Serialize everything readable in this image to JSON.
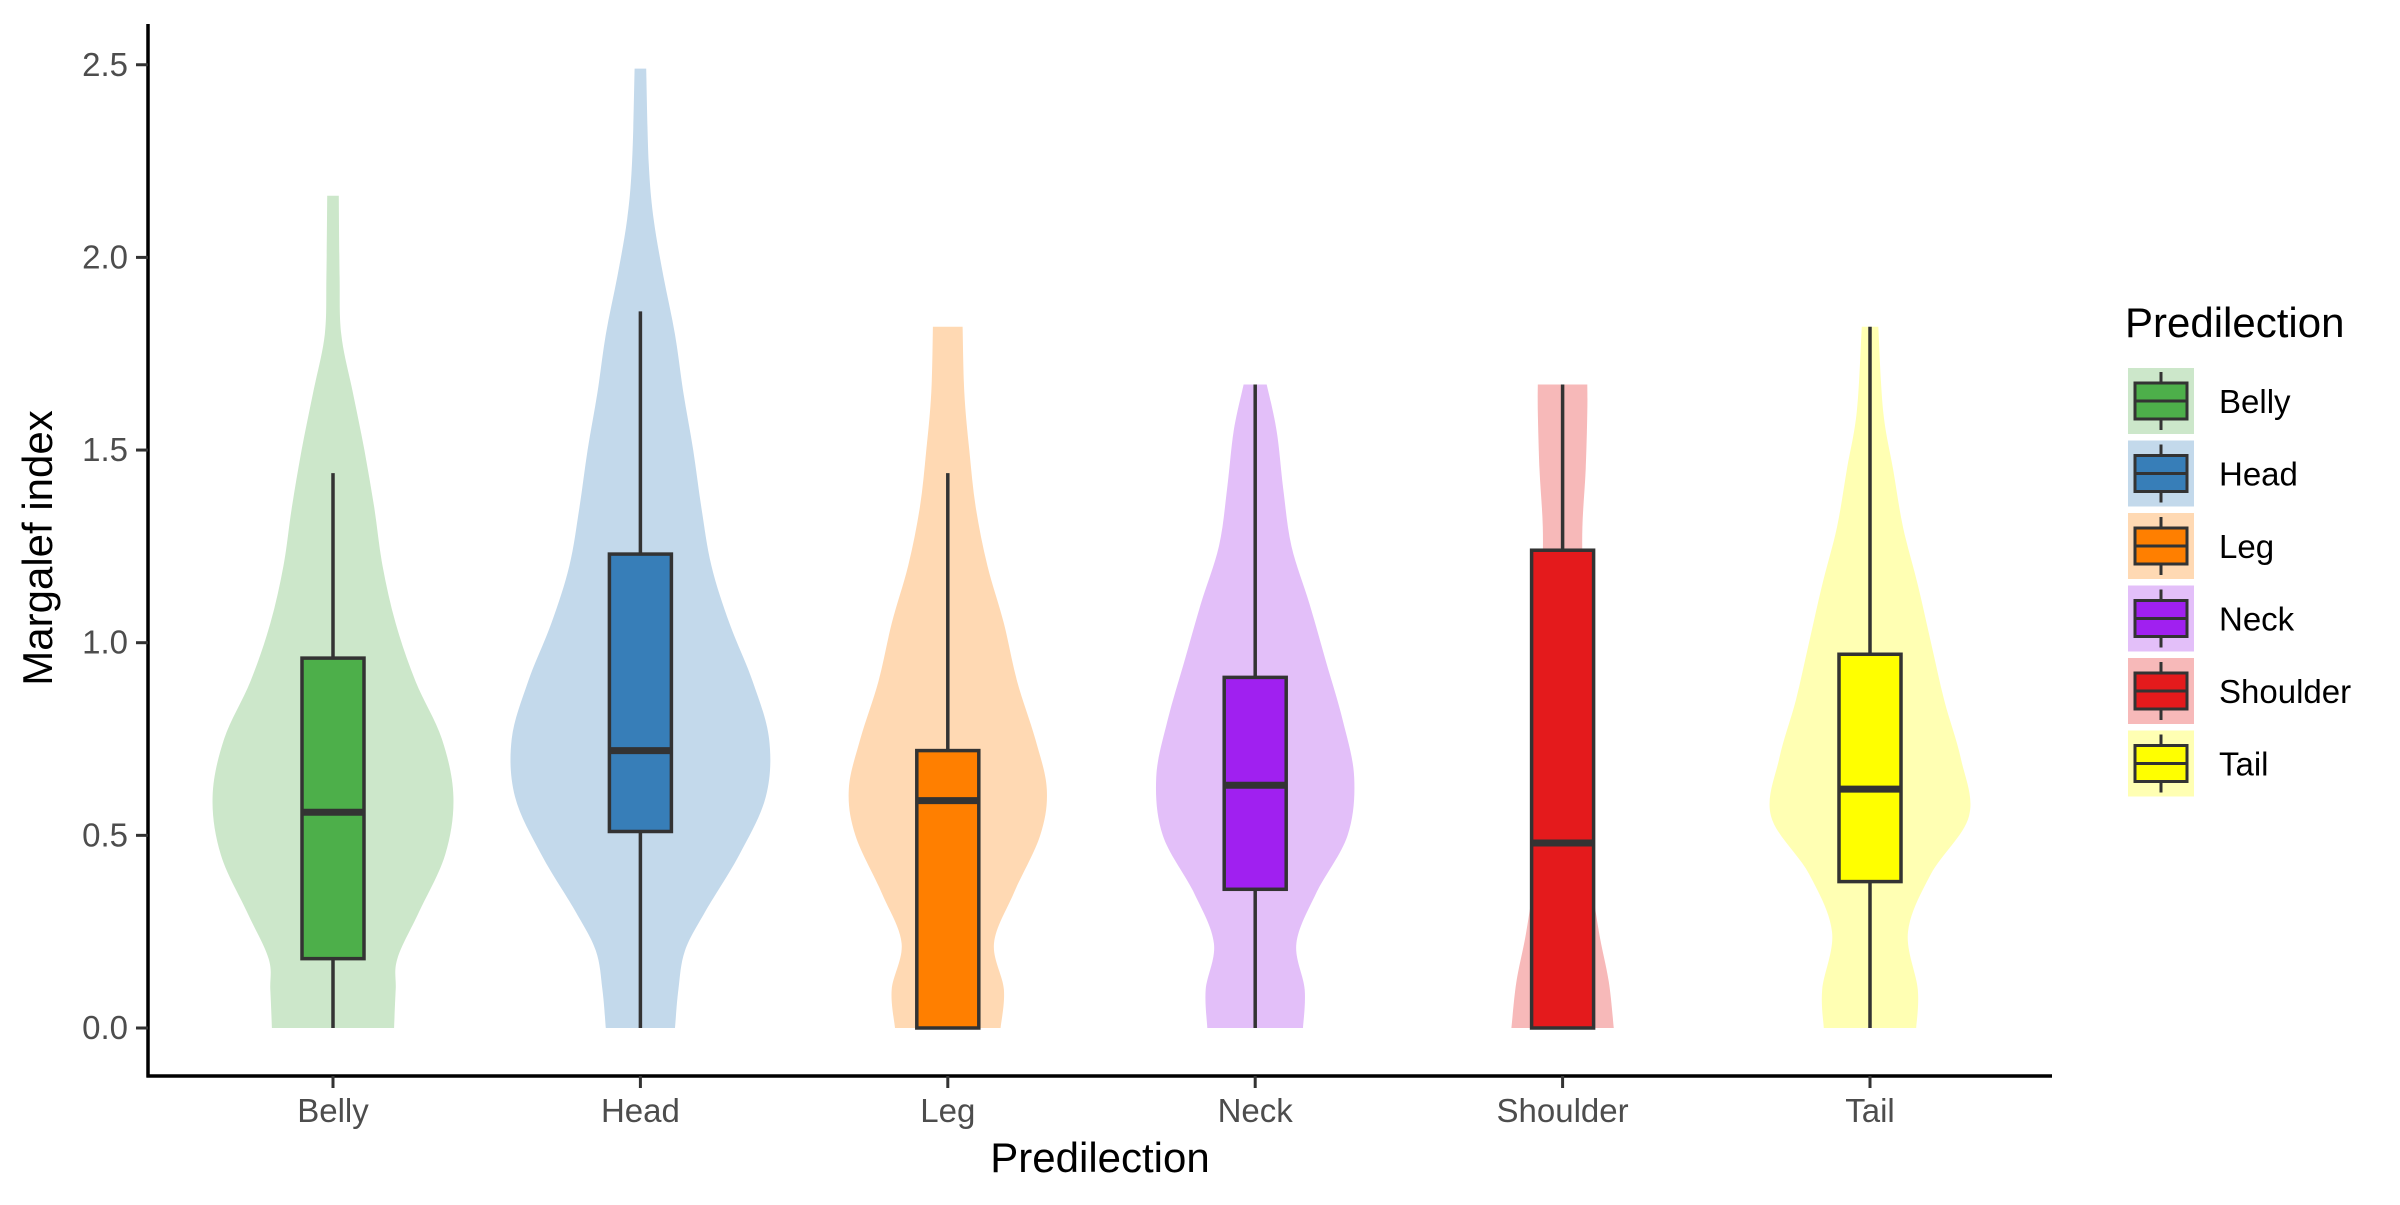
{
  "chart_data": {
    "type": "violin",
    "xlabel": "Predilection",
    "ylabel": "Margalef index",
    "ylim": [
      -0.12,
      2.6
    ],
    "yticks": [
      0.0,
      0.5,
      1.0,
      1.5,
      2.0,
      2.5
    ],
    "ytick_labels": [
      "0.0",
      "0.5",
      "1.0",
      "1.5",
      "2.0",
      "2.5"
    ],
    "categories": [
      "Belly",
      "Head",
      "Leg",
      "Neck",
      "Shoulder",
      "Tail"
    ],
    "legend": {
      "title": "Predilection",
      "position": "right",
      "entries": [
        "Belly",
        "Head",
        "Leg",
        "Neck",
        "Shoulder",
        "Tail"
      ]
    },
    "grid": false,
    "series": [
      {
        "name": "Belly",
        "color": "#4daf4a",
        "violin_color": "#cce7ca",
        "box": {
          "min": 0.0,
          "q1": 0.18,
          "median": 0.56,
          "q3": 0.96,
          "max": 1.44
        },
        "violin_max": 2.16,
        "density": [
          [
            0.0,
            0.37
          ],
          [
            0.1,
            0.38
          ],
          [
            0.18,
            0.39
          ],
          [
            0.3,
            0.52
          ],
          [
            0.45,
            0.68
          ],
          [
            0.6,
            0.73
          ],
          [
            0.75,
            0.66
          ],
          [
            0.9,
            0.5
          ],
          [
            1.05,
            0.38
          ],
          [
            1.2,
            0.3
          ],
          [
            1.35,
            0.25
          ],
          [
            1.5,
            0.19
          ],
          [
            1.65,
            0.12
          ],
          [
            1.8,
            0.05
          ],
          [
            1.95,
            0.04
          ],
          [
            2.16,
            0.035
          ]
        ]
      },
      {
        "name": "Head",
        "color": "#377eb8",
        "violin_color": "#c3d9eb",
        "box": {
          "min": 0.0,
          "q1": 0.51,
          "median": 0.72,
          "q3": 1.23,
          "max": 1.86
        },
        "violin_max": 2.49,
        "density": [
          [
            0.0,
            0.21
          ],
          [
            0.1,
            0.23
          ],
          [
            0.2,
            0.27
          ],
          [
            0.3,
            0.39
          ],
          [
            0.45,
            0.6
          ],
          [
            0.6,
            0.76
          ],
          [
            0.75,
            0.78
          ],
          [
            0.9,
            0.68
          ],
          [
            1.05,
            0.54
          ],
          [
            1.2,
            0.43
          ],
          [
            1.35,
            0.37
          ],
          [
            1.5,
            0.32
          ],
          [
            1.65,
            0.26
          ],
          [
            1.8,
            0.21
          ],
          [
            1.95,
            0.14
          ],
          [
            2.1,
            0.08
          ],
          [
            2.25,
            0.05
          ],
          [
            2.49,
            0.035
          ]
        ]
      },
      {
        "name": "Leg",
        "color": "#ff7f00",
        "violin_color": "#ffd9b3",
        "box": {
          "min": 0.0,
          "q1": 0.0,
          "median": 0.59,
          "q3": 0.72,
          "max": 1.44
        },
        "violin_max": 1.82,
        "density": [
          [
            0.0,
            0.32
          ],
          [
            0.1,
            0.34
          ],
          [
            0.22,
            0.28
          ],
          [
            0.35,
            0.4
          ],
          [
            0.5,
            0.56
          ],
          [
            0.62,
            0.6
          ],
          [
            0.75,
            0.53
          ],
          [
            0.9,
            0.42
          ],
          [
            1.05,
            0.34
          ],
          [
            1.2,
            0.24
          ],
          [
            1.35,
            0.17
          ],
          [
            1.5,
            0.13
          ],
          [
            1.65,
            0.1
          ],
          [
            1.82,
            0.09
          ]
        ]
      },
      {
        "name": "Neck",
        "color": "#a020f0",
        "violin_color": "#e3bff9",
        "box": {
          "min": 0.0,
          "q1": 0.36,
          "median": 0.63,
          "q3": 0.91,
          "max": 1.67
        },
        "violin_max": 1.67,
        "density": [
          [
            0.0,
            0.29
          ],
          [
            0.1,
            0.3
          ],
          [
            0.22,
            0.25
          ],
          [
            0.35,
            0.37
          ],
          [
            0.5,
            0.56
          ],
          [
            0.65,
            0.6
          ],
          [
            0.8,
            0.53
          ],
          [
            0.95,
            0.43
          ],
          [
            1.1,
            0.33
          ],
          [
            1.25,
            0.22
          ],
          [
            1.4,
            0.17
          ],
          [
            1.55,
            0.13
          ],
          [
            1.67,
            0.07
          ]
        ]
      },
      {
        "name": "Shoulder",
        "color": "#e41a1c",
        "violin_color": "#f7b9b9",
        "box": {
          "min": 0.0,
          "q1": 0.0,
          "median": 0.48,
          "q3": 1.24,
          "max": 1.67
        },
        "violin_max": 1.67,
        "density": [
          [
            0.0,
            0.31
          ],
          [
            0.12,
            0.28
          ],
          [
            0.25,
            0.22
          ],
          [
            0.4,
            0.17
          ],
          [
            0.55,
            0.15
          ],
          [
            0.7,
            0.13
          ],
          [
            0.85,
            0.12
          ],
          [
            1.0,
            0.11
          ],
          [
            1.15,
            0.12
          ],
          [
            1.3,
            0.12
          ],
          [
            1.45,
            0.14
          ],
          [
            1.6,
            0.15
          ],
          [
            1.67,
            0.15
          ]
        ]
      },
      {
        "name": "Tail",
        "color": "#ffff00",
        "violin_color": "#ffffb3",
        "box": {
          "min": 0.0,
          "q1": 0.38,
          "median": 0.62,
          "q3": 0.97,
          "max": 1.82
        },
        "violin_max": 1.82,
        "density": [
          [
            0.0,
            0.28
          ],
          [
            0.1,
            0.29
          ],
          [
            0.25,
            0.23
          ],
          [
            0.4,
            0.37
          ],
          [
            0.55,
            0.6
          ],
          [
            0.7,
            0.55
          ],
          [
            0.85,
            0.45
          ],
          [
            1.0,
            0.37
          ],
          [
            1.15,
            0.29
          ],
          [
            1.3,
            0.2
          ],
          [
            1.45,
            0.14
          ],
          [
            1.6,
            0.08
          ],
          [
            1.82,
            0.05
          ]
        ]
      }
    ]
  }
}
